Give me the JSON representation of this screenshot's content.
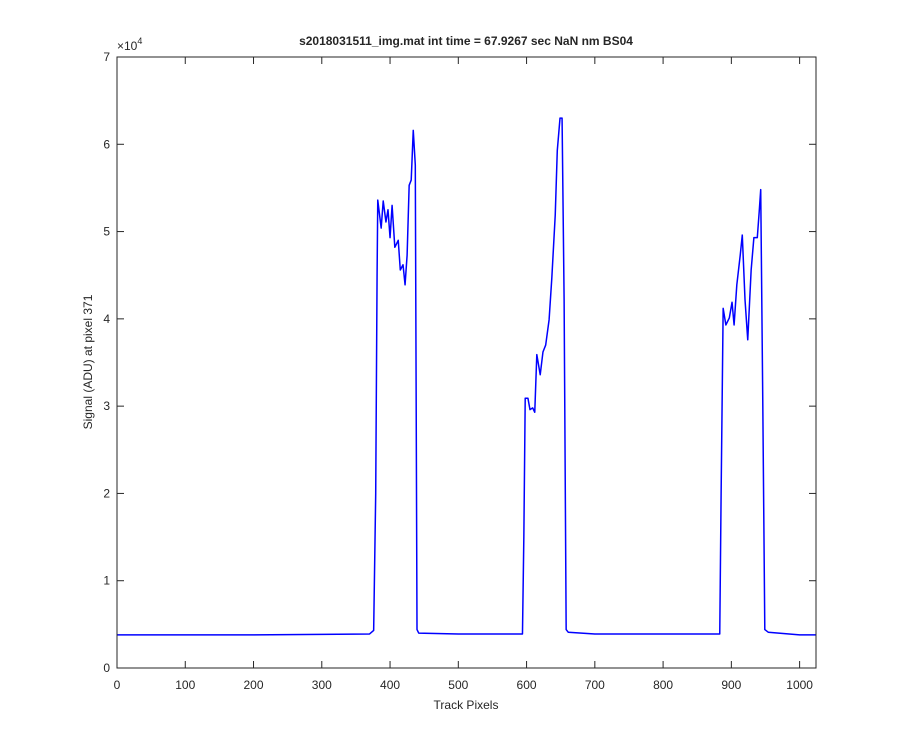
{
  "chart_data": {
    "type": "line",
    "title": "s2018031511_img.mat int time = 67.9267 sec  NaN nm BS04",
    "xlabel": "Track Pixels",
    "ylabel": "Signal (ADU) at pixel 371",
    "y_exponent": {
      "base": "×10",
      "power": "4"
    },
    "xlim": [
      0,
      1024
    ],
    "ylim": [
      0,
      70000
    ],
    "xticks": [
      0,
      100,
      200,
      300,
      400,
      500,
      600,
      700,
      800,
      900,
      1000
    ],
    "yticks": [
      0,
      {
        "value": 10000,
        "label": "1"
      },
      {
        "value": 20000,
        "label": "2"
      },
      {
        "value": 30000,
        "label": "3"
      },
      {
        "value": 40000,
        "label": "4"
      },
      {
        "value": 50000,
        "label": "5"
      },
      {
        "value": 60000,
        "label": "6"
      },
      {
        "value": 70000,
        "label": "7"
      }
    ],
    "grid": false,
    "x": [
      0,
      100,
      200,
      300,
      370,
      376,
      379,
      381,
      382,
      387,
      390,
      394,
      397,
      400,
      403,
      407,
      412,
      415,
      419,
      422,
      425,
      428,
      431,
      434,
      437,
      439.5,
      442,
      500,
      594,
      596,
      598,
      602,
      605,
      609,
      612,
      615,
      620,
      624,
      628,
      633,
      637,
      642,
      645,
      649,
      652,
      655,
      658,
      661,
      700,
      800,
      883,
      885,
      888,
      892,
      897,
      901,
      904,
      908,
      913,
      916,
      920,
      924,
      929,
      933,
      938,
      941,
      943,
      946,
      949,
      954,
      1000,
      1024
    ],
    "series": [
      {
        "color": "#0000ff",
        "values": [
          3800,
          3800,
          3800,
          3850,
          3900,
          4300,
          20000,
          45000,
          53600,
          50400,
          53500,
          51100,
          52500,
          49300,
          53000,
          48200,
          49000,
          45600,
          46200,
          43900,
          47300,
          55300,
          55900,
          61600,
          57600,
          4400,
          4000,
          3900,
          3900,
          15000,
          30900,
          30900,
          29600,
          29800,
          29300,
          35900,
          33600,
          36200,
          37000,
          39900,
          44700,
          51900,
          59300,
          63000,
          63000,
          42200,
          4400,
          4100,
          3900,
          3900,
          3900,
          20000,
          41200,
          39300,
          40100,
          41900,
          39300,
          43900,
          47300,
          49600,
          42200,
          37600,
          45600,
          49300,
          49300,
          52500,
          54800,
          30700,
          4400,
          4100,
          3800,
          3800
        ]
      }
    ]
  }
}
